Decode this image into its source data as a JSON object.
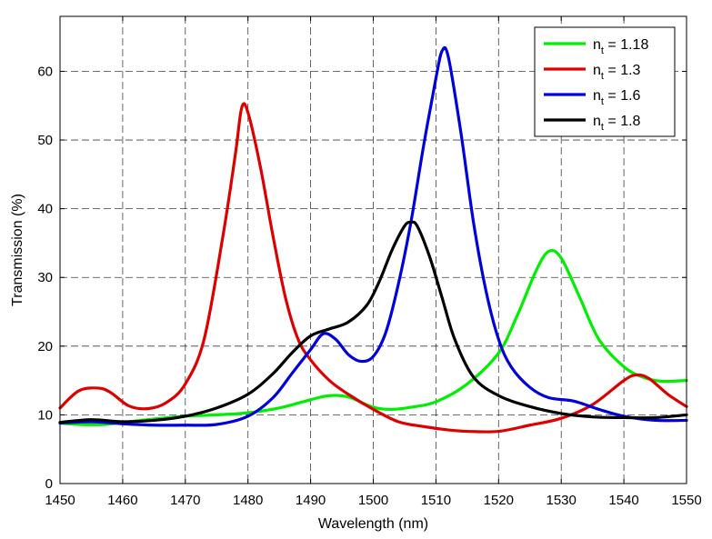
{
  "chart_data": {
    "type": "line",
    "xlabel": "Wavelength (nm)",
    "ylabel": "Transmission (%)",
    "xlim": [
      1450,
      1550
    ],
    "ylim": [
      0,
      68
    ],
    "xticks": [
      1450,
      1460,
      1470,
      1480,
      1490,
      1500,
      1510,
      1520,
      1530,
      1540,
      1550
    ],
    "yticks": [
      0,
      10,
      20,
      30,
      40,
      50,
      60
    ],
    "grid": true,
    "legend_position": "top-right",
    "series": [
      {
        "name_main": "n",
        "name_sub": "t",
        "name_rest": " = 1.18",
        "color": "#00ee00",
        "points": [
          [
            1450,
            8.8
          ],
          [
            1453,
            8.6
          ],
          [
            1457,
            8.6
          ],
          [
            1460,
            8.9
          ],
          [
            1465,
            9.4
          ],
          [
            1470,
            9.8
          ],
          [
            1475,
            10.0
          ],
          [
            1480,
            10.3
          ],
          [
            1485,
            11.0
          ],
          [
            1490,
            12.2
          ],
          [
            1493,
            12.8
          ],
          [
            1496,
            12.6
          ],
          [
            1500,
            11.1
          ],
          [
            1503,
            10.8
          ],
          [
            1506,
            11.1
          ],
          [
            1510,
            11.9
          ],
          [
            1515,
            14.5
          ],
          [
            1520,
            19.0
          ],
          [
            1523,
            24.5
          ],
          [
            1526,
            31.0
          ],
          [
            1528,
            33.8
          ],
          [
            1530,
            32.8
          ],
          [
            1533,
            27.0
          ],
          [
            1536,
            21.0
          ],
          [
            1540,
            17.0
          ],
          [
            1543,
            15.5
          ],
          [
            1546,
            14.9
          ],
          [
            1550,
            15.0
          ]
        ]
      },
      {
        "name_main": "n",
        "name_sub": "t",
        "name_rest": " = 1.3",
        "color": "#dd0000",
        "points": [
          [
            1450,
            11.0
          ],
          [
            1453,
            13.5
          ],
          [
            1456,
            13.9
          ],
          [
            1458,
            13.3
          ],
          [
            1461,
            11.3
          ],
          [
            1464,
            10.9
          ],
          [
            1467,
            11.8
          ],
          [
            1470,
            14.5
          ],
          [
            1473,
            21.0
          ],
          [
            1476,
            36.0
          ],
          [
            1478,
            48.0
          ],
          [
            1479,
            54.7
          ],
          [
            1480,
            54.0
          ],
          [
            1482,
            46.0
          ],
          [
            1484,
            36.0
          ],
          [
            1486,
            27.0
          ],
          [
            1488,
            21.0
          ],
          [
            1490,
            18.0
          ],
          [
            1493,
            15.0
          ],
          [
            1496,
            13.0
          ],
          [
            1500,
            10.8
          ],
          [
            1504,
            9.0
          ],
          [
            1508,
            8.3
          ],
          [
            1512,
            7.8
          ],
          [
            1515,
            7.6
          ],
          [
            1520,
            7.6
          ],
          [
            1525,
            8.5
          ],
          [
            1530,
            9.5
          ],
          [
            1535,
            11.5
          ],
          [
            1540,
            15.0
          ],
          [
            1542,
            15.8
          ],
          [
            1544,
            15.3
          ],
          [
            1547,
            13.0
          ],
          [
            1550,
            11.2
          ]
        ]
      },
      {
        "name_main": "n",
        "name_sub": "t",
        "name_rest": " = 1.6",
        "color": "#0000dd",
        "points": [
          [
            1450,
            8.8
          ],
          [
            1455,
            9.0
          ],
          [
            1460,
            8.7
          ],
          [
            1465,
            8.5
          ],
          [
            1470,
            8.5
          ],
          [
            1475,
            8.6
          ],
          [
            1480,
            9.8
          ],
          [
            1484,
            12.5
          ],
          [
            1487,
            16.0
          ],
          [
            1490,
            19.5
          ],
          [
            1492,
            21.8
          ],
          [
            1494,
            21.0
          ],
          [
            1496,
            18.8
          ],
          [
            1498,
            17.8
          ],
          [
            1500,
            18.5
          ],
          [
            1502,
            22.0
          ],
          [
            1504,
            29.0
          ],
          [
            1506,
            38.0
          ],
          [
            1508,
            49.0
          ],
          [
            1510,
            59.0
          ],
          [
            1511,
            63.0
          ],
          [
            1512,
            62.0
          ],
          [
            1514,
            51.0
          ],
          [
            1516,
            38.0
          ],
          [
            1518,
            28.0
          ],
          [
            1520,
            21.0
          ],
          [
            1522,
            17.0
          ],
          [
            1525,
            14.0
          ],
          [
            1528,
            12.5
          ],
          [
            1532,
            12.0
          ],
          [
            1536,
            10.8
          ],
          [
            1540,
            9.8
          ],
          [
            1545,
            9.2
          ],
          [
            1550,
            9.2
          ]
        ]
      },
      {
        "name_main": "n",
        "name_sub": "t",
        "name_rest": " = 1.8",
        "color": "#000000",
        "points": [
          [
            1450,
            8.9
          ],
          [
            1455,
            9.3
          ],
          [
            1460,
            9.0
          ],
          [
            1465,
            9.2
          ],
          [
            1470,
            9.8
          ],
          [
            1475,
            11.0
          ],
          [
            1480,
            13.0
          ],
          [
            1484,
            16.0
          ],
          [
            1487,
            19.0
          ],
          [
            1490,
            21.5
          ],
          [
            1493,
            22.5
          ],
          [
            1496,
            23.5
          ],
          [
            1499,
            26.0
          ],
          [
            1501,
            29.5
          ],
          [
            1503,
            34.0
          ],
          [
            1505,
            37.5
          ],
          [
            1506,
            38.0
          ],
          [
            1507,
            37.5
          ],
          [
            1509,
            33.0
          ],
          [
            1511,
            27.0
          ],
          [
            1513,
            21.0
          ],
          [
            1516,
            15.5
          ],
          [
            1520,
            12.8
          ],
          [
            1525,
            11.2
          ],
          [
            1530,
            10.2
          ],
          [
            1535,
            9.7
          ],
          [
            1540,
            9.6
          ],
          [
            1545,
            9.6
          ],
          [
            1550,
            10.0
          ]
        ]
      }
    ]
  }
}
